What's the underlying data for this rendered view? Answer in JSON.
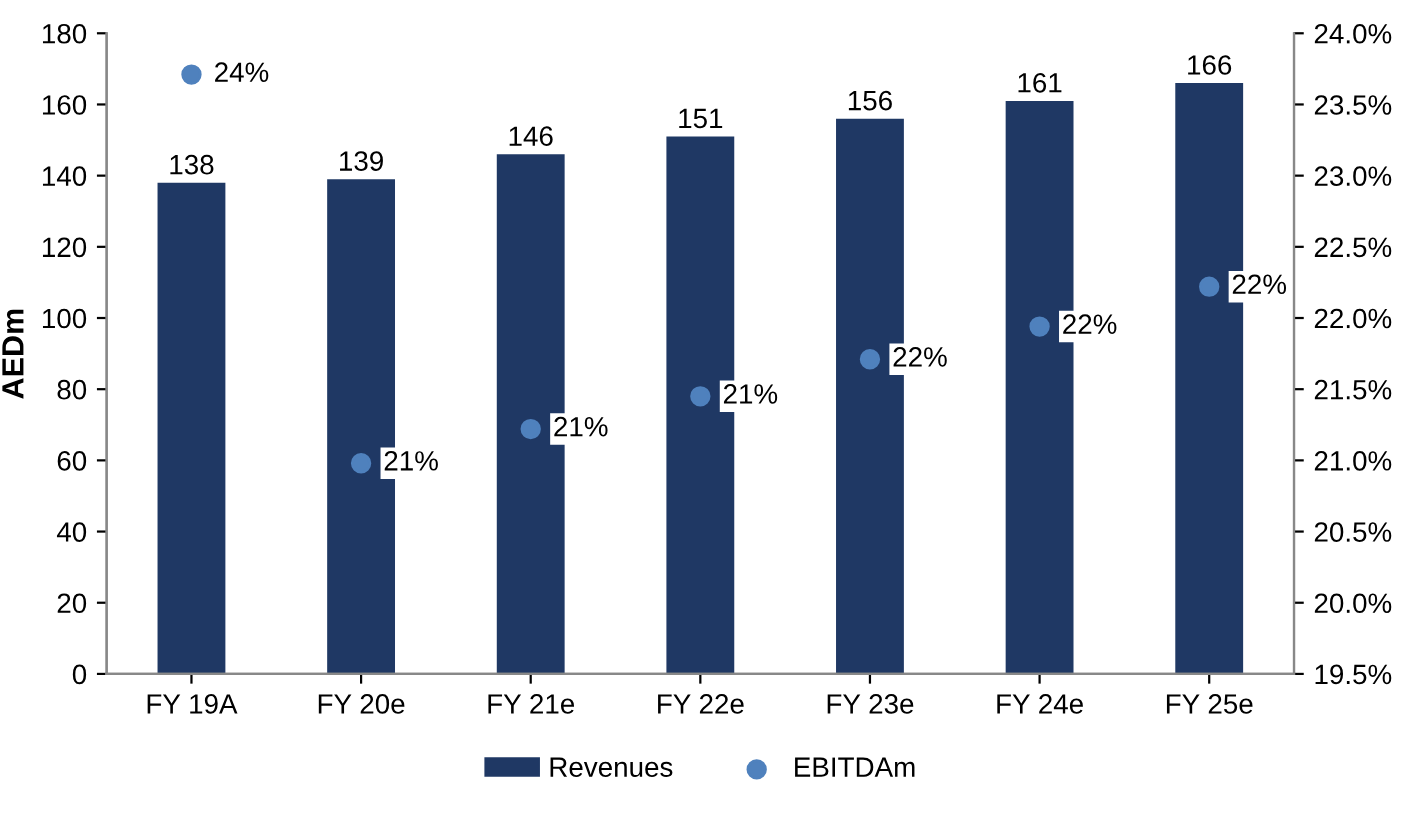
{
  "chart_data": {
    "type": "bar",
    "ylabel": "AEDm",
    "categories": [
      "FY 19A",
      "FY 20e",
      "FY 21e",
      "FY 22e",
      "FY 23e",
      "FY 24e",
      "FY 25e"
    ],
    "series": [
      {
        "name": "Revenues",
        "color": "#1f3864",
        "values": [
          138,
          139,
          146,
          151,
          156,
          161,
          166
        ],
        "value_labels": [
          "138",
          "139",
          "146",
          "151",
          "156",
          "161",
          "166"
        ]
      },
      {
        "name": "EBITDAm",
        "type": "scatter",
        "axis": "y2",
        "color": "#4f81bd",
        "values": [
          23.71,
          20.98,
          21.22,
          21.45,
          21.71,
          21.94,
          22.22
        ],
        "value_labels": [
          "24%",
          "21%",
          "21%",
          "21%",
          "22%",
          "22%",
          "22%"
        ]
      }
    ],
    "ylim": [
      0,
      180
    ],
    "yticks": [
      0,
      20,
      40,
      60,
      80,
      100,
      120,
      140,
      160,
      180
    ],
    "y2lim": [
      19.5,
      24.0
    ],
    "y2ticks": [
      {
        "value": 19.5,
        "label": "19.5%"
      },
      {
        "value": 20.0,
        "label": "20.0%"
      },
      {
        "value": 20.5,
        "label": "20.5%"
      },
      {
        "value": 21.0,
        "label": "21.0%"
      },
      {
        "value": 21.5,
        "label": "21.5%"
      },
      {
        "value": 22.0,
        "label": "22.0%"
      },
      {
        "value": 22.5,
        "label": "22.5%"
      },
      {
        "value": 23.0,
        "label": "23.0%"
      },
      {
        "value": 23.5,
        "label": "23.5%"
      },
      {
        "value": 24.0,
        "label": "24.0%"
      }
    ],
    "grid": false,
    "legend": "bottom",
    "marker": "circle"
  }
}
